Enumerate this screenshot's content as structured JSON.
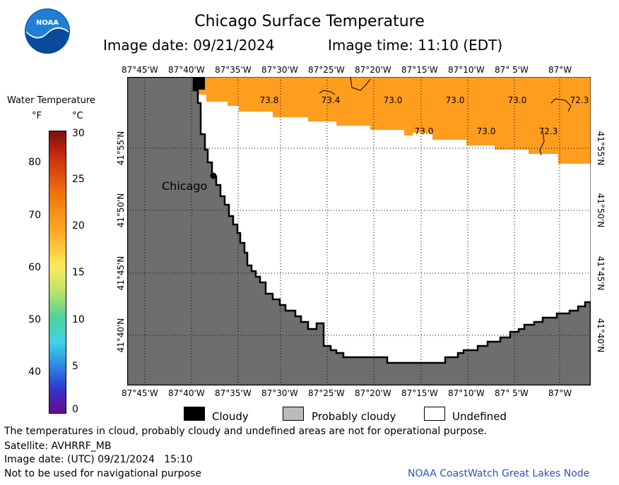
{
  "header": {
    "title": "Chicago Surface Temperature",
    "image_date": "Image date: 09/21/2024",
    "image_time": "Image time: 11:10 (EDT)"
  },
  "logo": {
    "text": "NOAA"
  },
  "legend": {
    "title": "Water Temperature",
    "unit_f": "°F",
    "unit_c": "°C",
    "f_ticks": [
      "80",
      "70",
      "60",
      "50",
      "40"
    ],
    "c_ticks": [
      "30",
      "25",
      "20",
      "15",
      "10",
      "5",
      "0"
    ],
    "categories": [
      "Cloudy",
      "Probably cloudy",
      "Undefined"
    ],
    "category_colors": [
      "#000000",
      "#bbbbbb",
      "#ffffff"
    ]
  },
  "map": {
    "lon_labels": [
      "87°45'W",
      "87°40'W",
      "87°35'W",
      "87°30'W",
      "87°25'W",
      "87°20'W",
      "87°15'W",
      "87°10'W",
      "87° 5'W",
      "87°W"
    ],
    "lat_labels": [
      "41°55'N",
      "41°50'N",
      "41°45'N",
      "41°40'N"
    ],
    "city": "Chicago",
    "temperature_labels": [
      "73.8",
      "73.4",
      "73.0",
      "73.0",
      "73.0",
      "72.3",
      "73.0",
      "73.0",
      "72.3"
    ],
    "colors": {
      "land": "#6e6e6e",
      "warm_water": "#ff9d1f",
      "undefined": "#ffffff",
      "grid": "#000000"
    }
  },
  "footer": {
    "disclaimer": "The temperatures in cloud, probably cloudy and undefined areas are not for operational purpose.",
    "satellite": "Satellite: AVHRRF_MB",
    "utc_date": "Image date: (UTC) 09/21/2024   15:10",
    "navigation": "Not to be used for navigational purpose",
    "credit": "NOAA CoastWatch Great Lakes Node"
  }
}
